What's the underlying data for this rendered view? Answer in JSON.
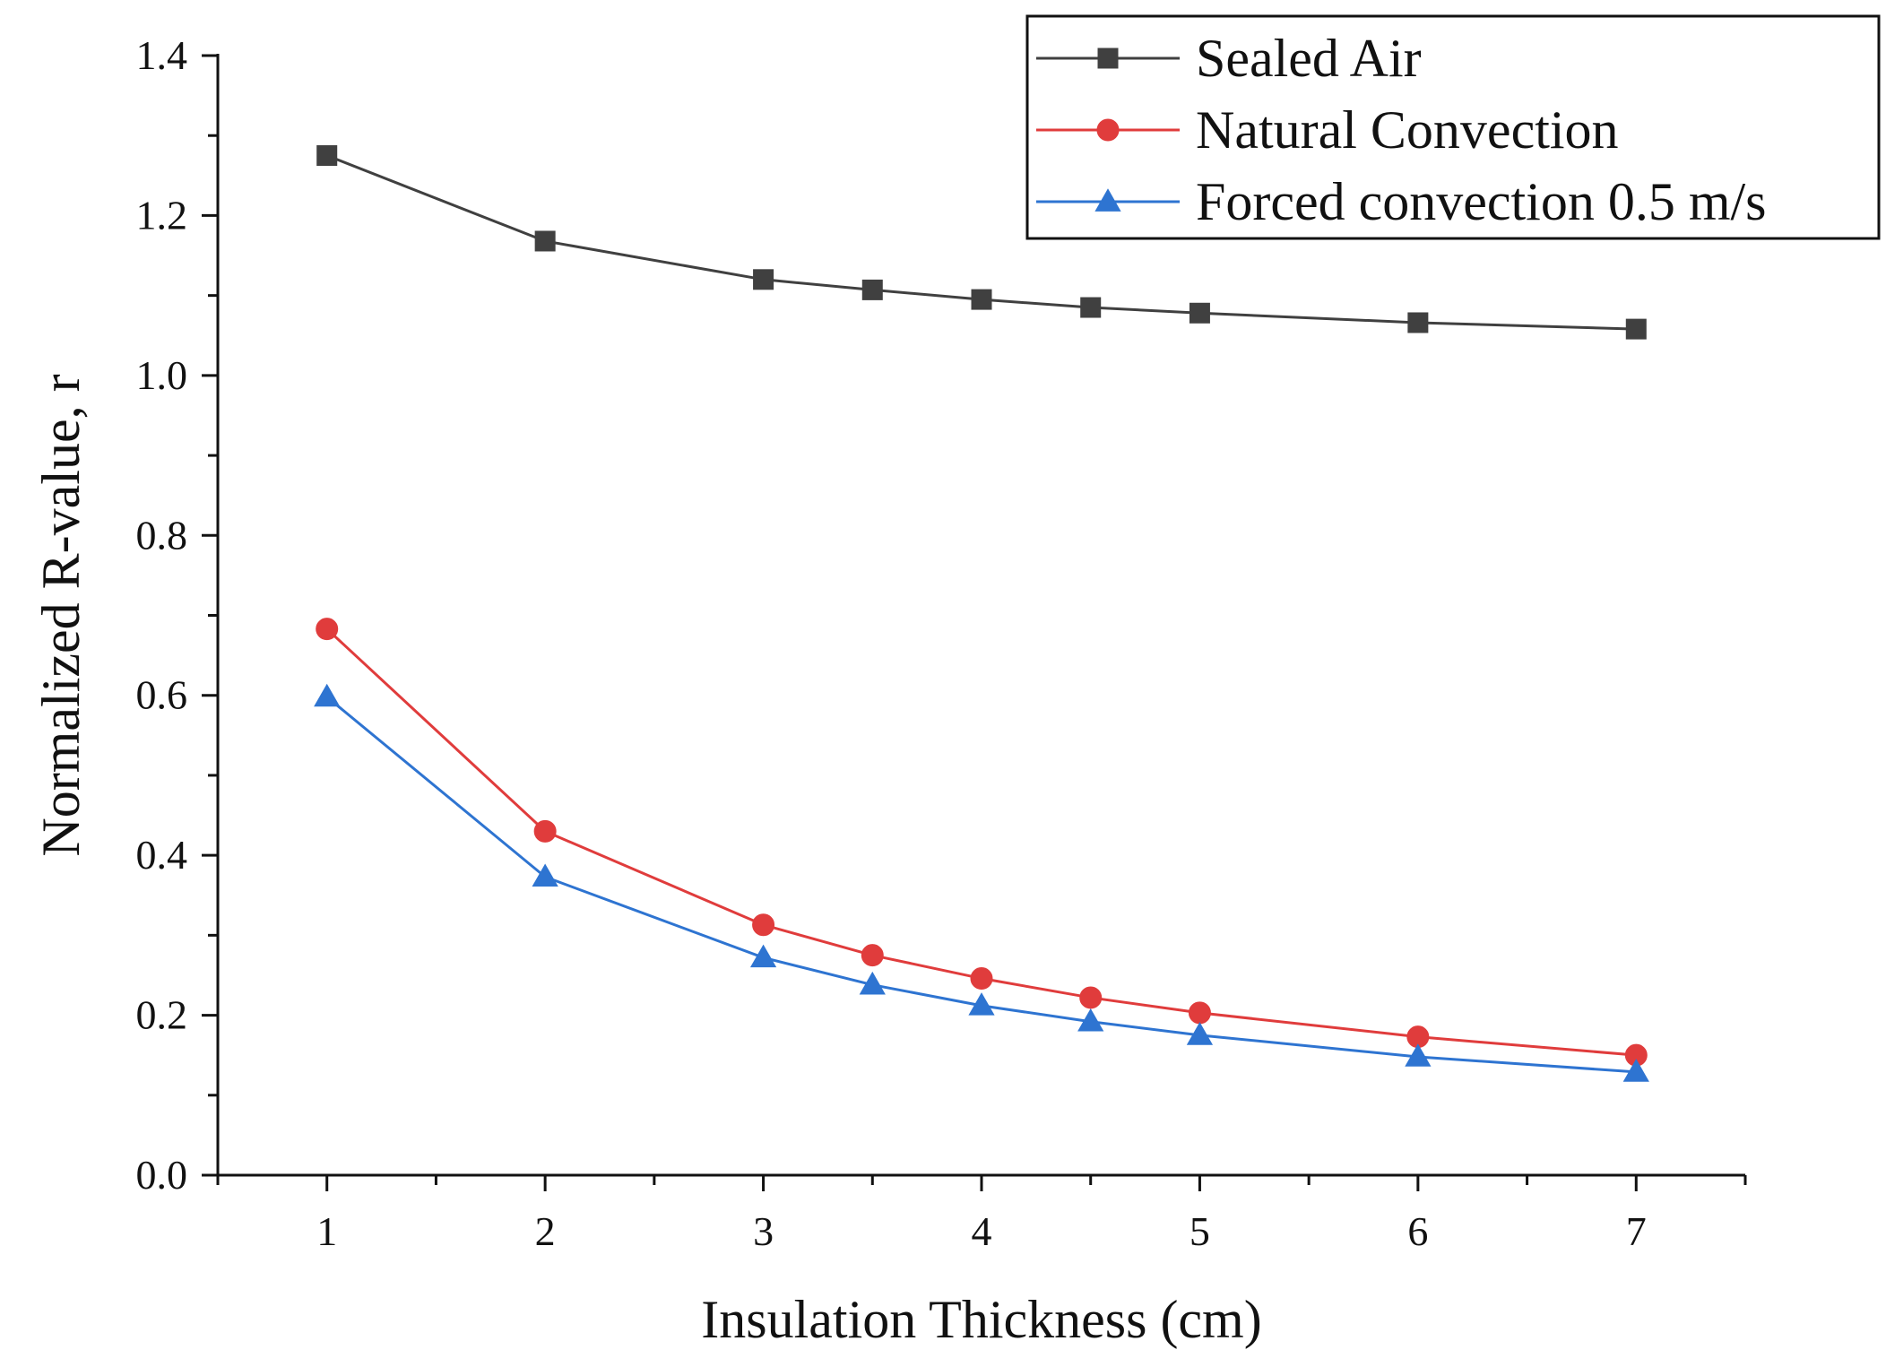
{
  "chart_data": {
    "type": "line",
    "title": "",
    "xlabel": "Insulation Thickness (cm)",
    "ylabel": "Normalized R-value, r",
    "xlim": [
      0.5,
      7.5
    ],
    "ylim": [
      0.0,
      1.4
    ],
    "x_ticks": [
      1,
      2,
      3,
      4,
      5,
      6,
      7
    ],
    "x_tick_labels": [
      "1",
      "2",
      "3",
      "4",
      "5",
      "6",
      "7"
    ],
    "y_ticks": [
      0.0,
      0.2,
      0.4,
      0.6,
      0.8,
      1.0,
      1.2,
      1.4
    ],
    "y_tick_labels": [
      "0.0",
      "0.2",
      "0.4",
      "0.6",
      "0.8",
      "1.0",
      "1.2",
      "1.4"
    ],
    "grid": false,
    "legend_position": "top-right",
    "x": [
      1,
      2,
      3,
      3.5,
      4,
      4.5,
      5,
      6,
      7
    ],
    "series": [
      {
        "name": "Sealed Air",
        "color": "#404040",
        "marker": "square",
        "values": [
          1.275,
          1.168,
          1.12,
          1.107,
          1.095,
          1.085,
          1.078,
          1.066,
          1.058
        ]
      },
      {
        "name": "Natural Convection",
        "color": "#e03c3c",
        "marker": "circle",
        "values": [
          0.683,
          0.43,
          0.313,
          0.275,
          0.246,
          0.222,
          0.203,
          0.173,
          0.15
        ]
      },
      {
        "name": "Forced convection 0.5 m/s",
        "color": "#2e74d1",
        "marker": "triangle",
        "values": [
          0.598,
          0.373,
          0.272,
          0.238,
          0.212,
          0.192,
          0.175,
          0.148,
          0.129
        ]
      }
    ]
  }
}
